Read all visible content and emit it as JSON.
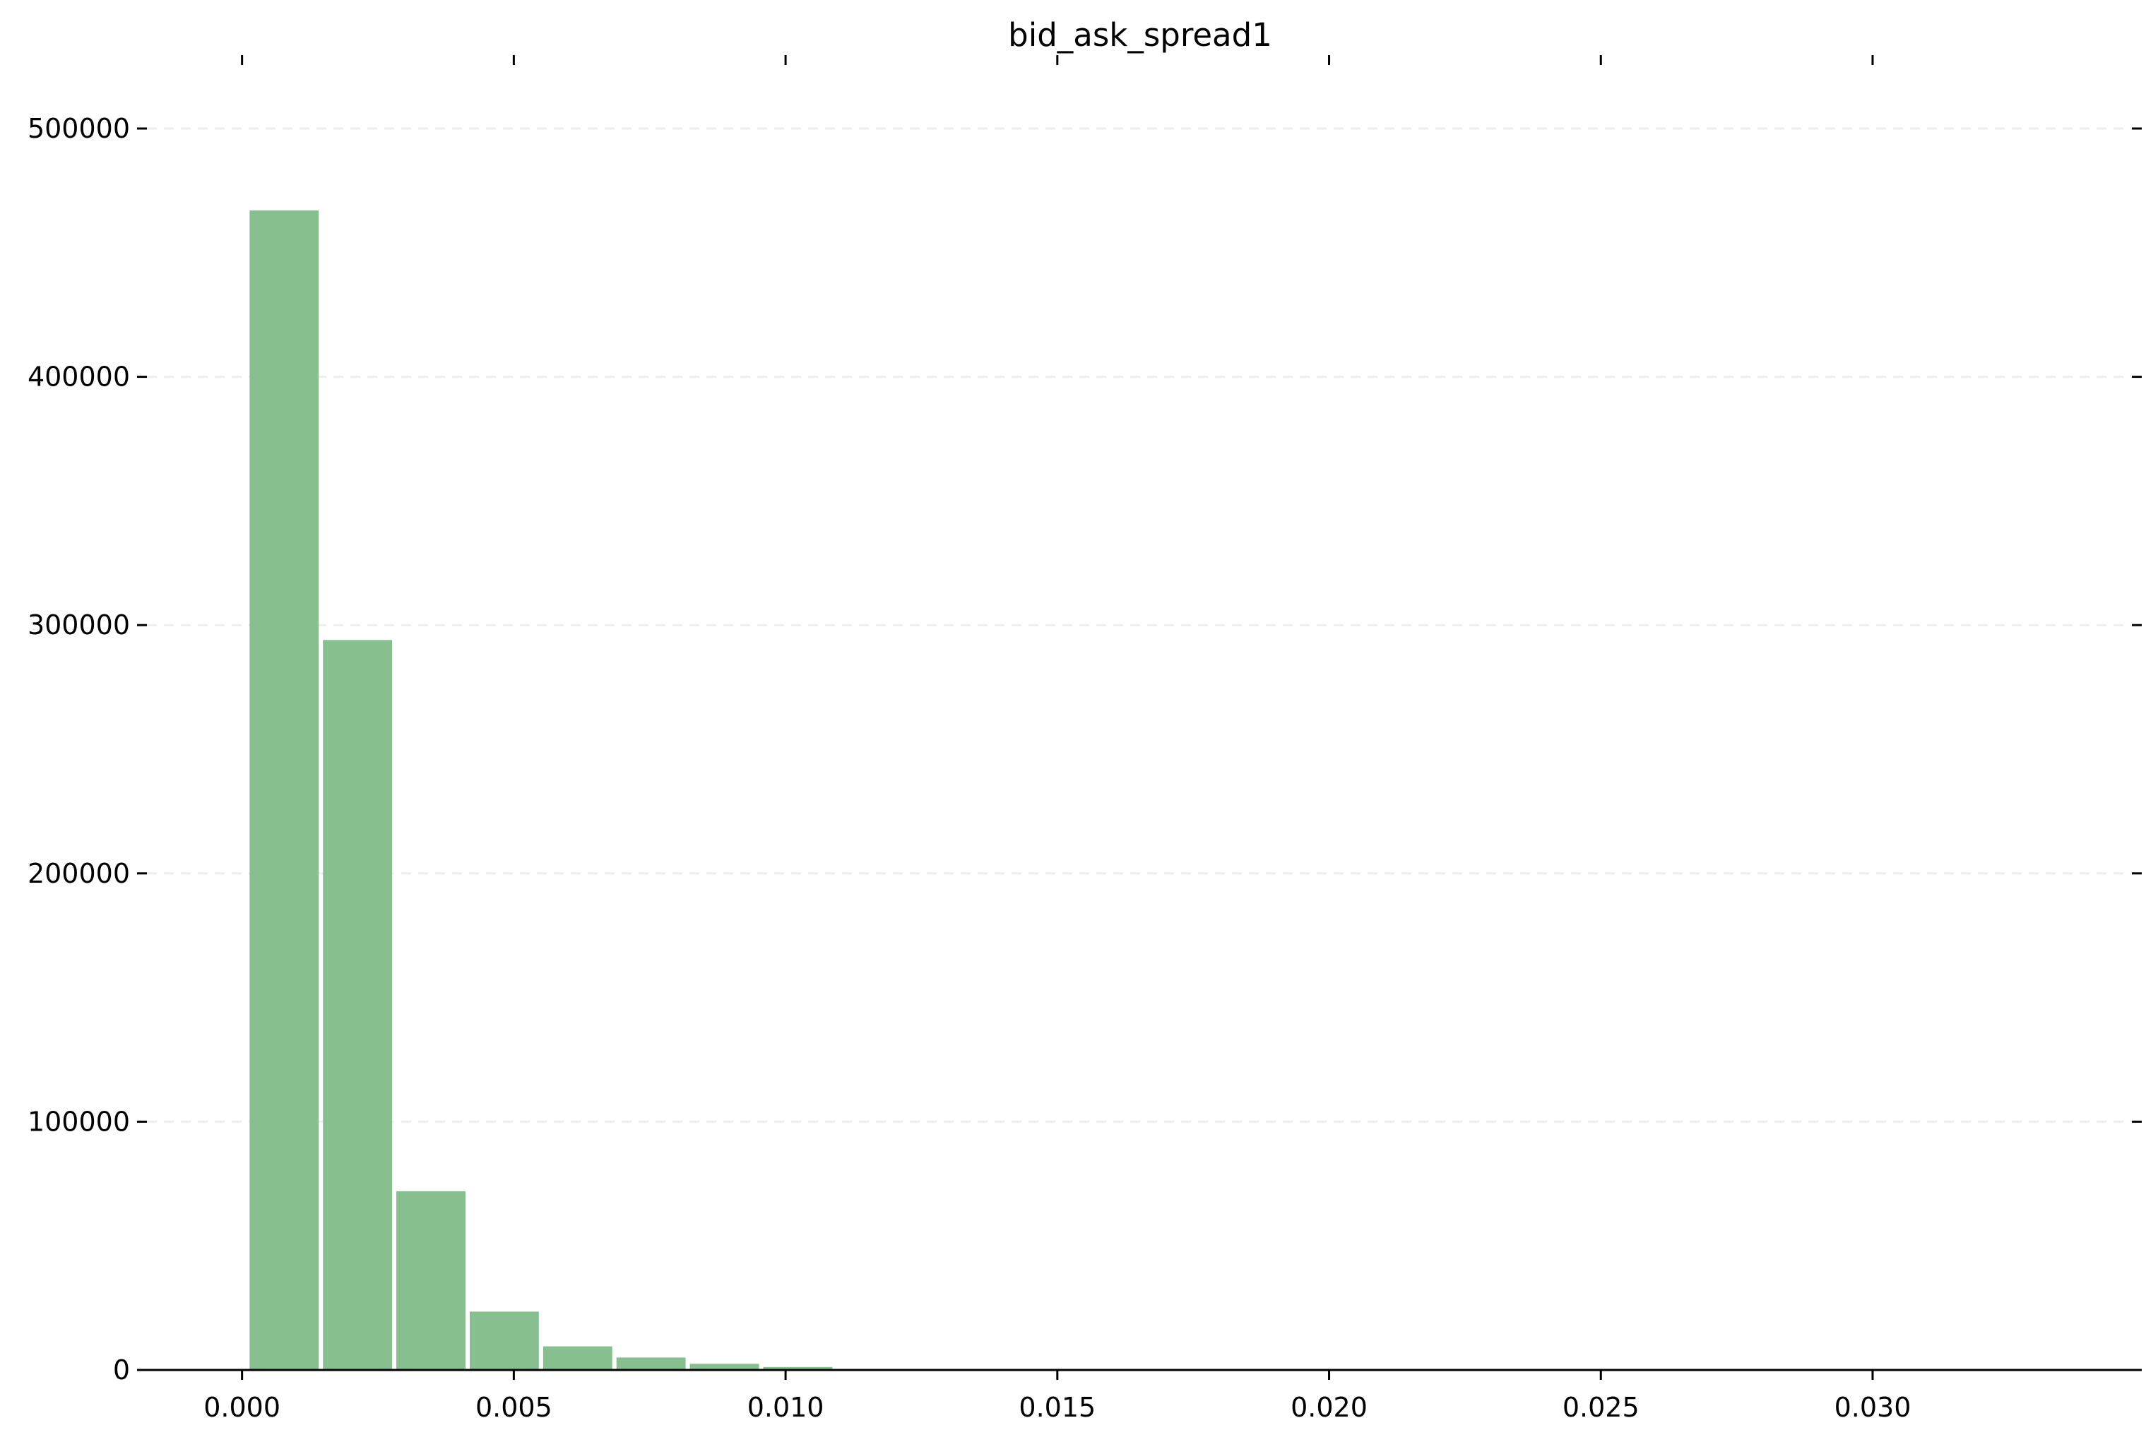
{
  "chart_data": {
    "type": "bar",
    "title": "bid_ask_spread1",
    "xlabel": "",
    "ylabel": "",
    "bin_edges": [
      0.0001,
      0.00145,
      0.0028,
      0.00415,
      0.0055,
      0.00685,
      0.0082,
      0.00955,
      0.0109,
      0.01225,
      0.0136,
      0.01495,
      0.0163,
      0.01765,
      0.019,
      0.02035,
      0.0217,
      0.02305,
      0.0244,
      0.02575,
      0.0271,
      0.02845,
      0.0298,
      0.03115,
      0.0325,
      0.03385
    ],
    "values": [
      467000,
      294000,
      72000,
      23500,
      9500,
      5000,
      2500,
      1200,
      400,
      200,
      100,
      60,
      40,
      20,
      10,
      5,
      3,
      2,
      1,
      1,
      1,
      0,
      0,
      0,
      1
    ],
    "xlim": [
      -0.00175,
      0.03477
    ],
    "ylim": [
      0,
      500000
    ],
    "x_ticks": [
      0.0,
      0.005,
      0.01,
      0.015,
      0.02,
      0.025,
      0.03
    ],
    "x_tick_labels": [
      "0.000",
      "0.005",
      "0.010",
      "0.015",
      "0.020",
      "0.025",
      "0.030"
    ],
    "y_ticks": [
      0,
      100000,
      200000,
      300000,
      400000,
      500000
    ],
    "y_tick_labels": [
      "0",
      "100000",
      "200000",
      "300000",
      "400000",
      "500000"
    ],
    "grid": "y-dashed",
    "legend": "none",
    "colors": {
      "bar": "#88bf91",
      "grid": "#eeeeee",
      "axis": "#000000"
    }
  }
}
